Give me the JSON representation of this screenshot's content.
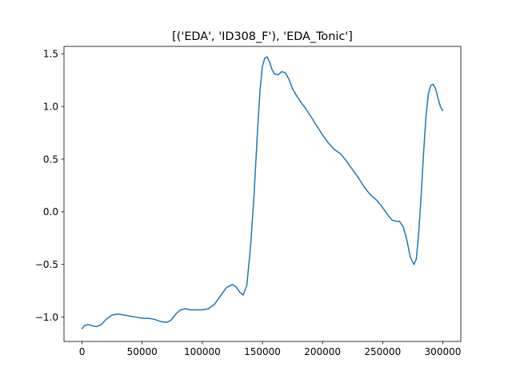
{
  "chart_data": {
    "type": "line",
    "title": "[('EDA', 'ID308_F'), 'EDA_Tonic']",
    "xlabel": "",
    "ylabel": "",
    "xlim": [
      -15000,
      315000
    ],
    "ylim": [
      -1.23,
      1.57
    ],
    "xticks": [
      0,
      50000,
      100000,
      150000,
      200000,
      250000,
      300000
    ],
    "xtick_labels": [
      "0",
      "50000",
      "100000",
      "150000",
      "200000",
      "250000",
      "300000"
    ],
    "yticks": [
      -1.0,
      -0.5,
      0.0,
      0.5,
      1.0,
      1.5
    ],
    "ytick_labels": [
      "−1.0",
      "−0.5",
      "0.0",
      "0.5",
      "1.0",
      "1.5"
    ],
    "grid": false,
    "legend": "none",
    "line_color": "#1f77b4",
    "series": [
      {
        "x": [
          0,
          2000,
          5000,
          8000,
          12000,
          16000,
          20000,
          25000,
          30000,
          35000,
          40000,
          45000,
          50000,
          55000,
          60000,
          65000,
          70000,
          74000,
          78000,
          82000,
          86000,
          90000,
          95000,
          100000,
          105000,
          110000,
          115000,
          120000,
          125000,
          128000,
          131000,
          134000,
          137000,
          140000,
          143000,
          146000,
          148000,
          150000,
          152000,
          154000,
          156000,
          158000,
          160000,
          163000,
          166000,
          169000,
          172000,
          175000,
          178000,
          182000,
          186000,
          190000,
          195000,
          200000,
          205000,
          210000,
          215000,
          220000,
          225000,
          230000,
          235000,
          240000,
          245000,
          250000,
          255000,
          258000,
          261000,
          264000,
          267000,
          270000,
          273000,
          276000,
          278000,
          280000,
          282000,
          284000,
          286000,
          288000,
          290000,
          292000,
          294000,
          296000,
          298000,
          300000
        ],
        "y": [
          -1.11,
          -1.08,
          -1.07,
          -1.08,
          -1.09,
          -1.07,
          -1.02,
          -0.98,
          -0.97,
          -0.98,
          -0.99,
          -1.0,
          -1.01,
          -1.01,
          -1.02,
          -1.04,
          -1.05,
          -1.03,
          -0.97,
          -0.93,
          -0.92,
          -0.93,
          -0.93,
          -0.93,
          -0.92,
          -0.88,
          -0.8,
          -0.72,
          -0.69,
          -0.71,
          -0.76,
          -0.79,
          -0.7,
          -0.35,
          0.15,
          0.78,
          1.15,
          1.38,
          1.46,
          1.47,
          1.42,
          1.35,
          1.31,
          1.3,
          1.33,
          1.32,
          1.26,
          1.17,
          1.11,
          1.04,
          0.98,
          0.91,
          0.82,
          0.73,
          0.65,
          0.59,
          0.55,
          0.48,
          0.4,
          0.32,
          0.23,
          0.16,
          0.11,
          0.04,
          -0.04,
          -0.08,
          -0.09,
          -0.09,
          -0.14,
          -0.26,
          -0.43,
          -0.5,
          -0.45,
          -0.2,
          0.15,
          0.55,
          0.9,
          1.12,
          1.2,
          1.21,
          1.17,
          1.08,
          1.0,
          0.96
        ]
      }
    ]
  }
}
